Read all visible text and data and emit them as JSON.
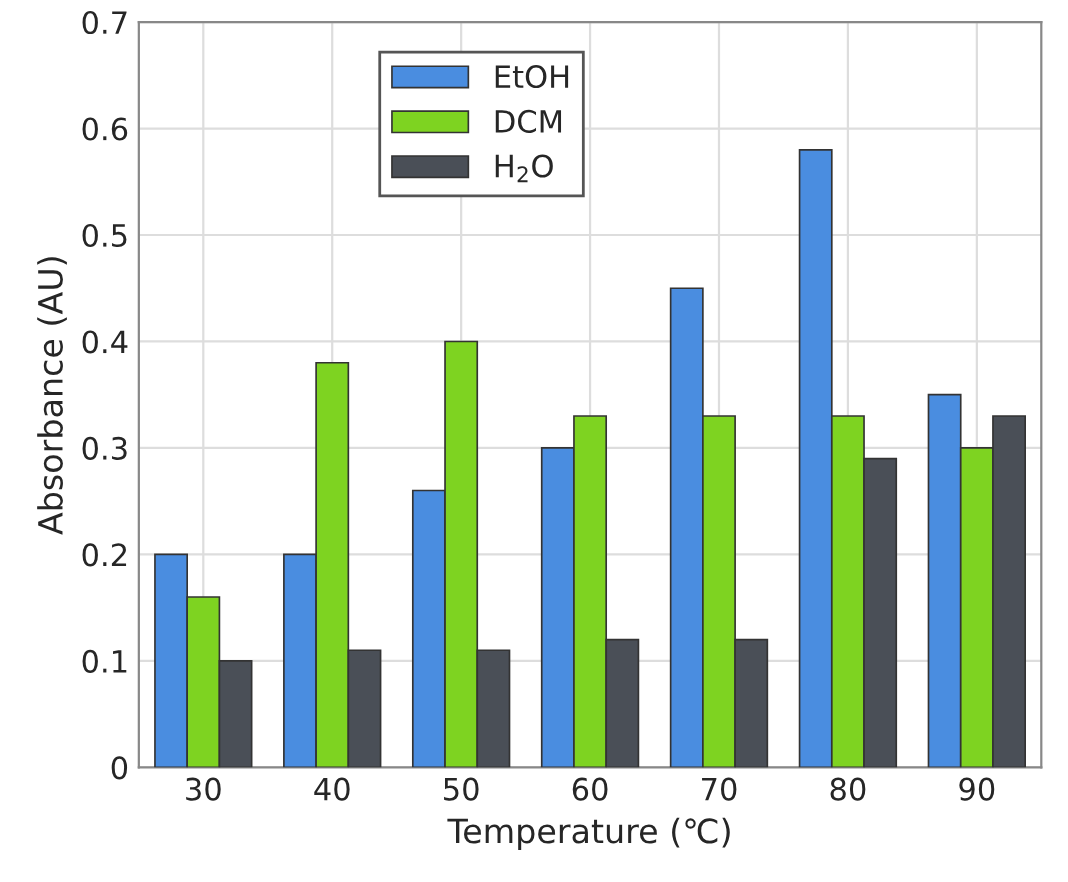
{
  "chart_data": {
    "type": "bar",
    "xlabel": "Temperature (℃)",
    "ylabel": "Absorbance (AU)",
    "categories": [
      "30",
      "40",
      "50",
      "60",
      "70",
      "80",
      "90"
    ],
    "series": [
      {
        "name": "EtOH",
        "color": "#4a8de0",
        "values": [
          0.2,
          0.2,
          0.26,
          0.3,
          0.45,
          0.58,
          0.35
        ]
      },
      {
        "name": "DCM",
        "color": "#7ed321",
        "values": [
          0.16,
          0.38,
          0.4,
          0.33,
          0.33,
          0.33,
          0.3
        ]
      },
      {
        "name": "H$_{2}$O",
        "color": "#4a4f57",
        "values": [
          0.1,
          0.11,
          0.11,
          0.12,
          0.12,
          0.29,
          0.33
        ]
      }
    ],
    "ylim": [
      0,
      0.7
    ],
    "yticks": [
      0,
      0.1,
      0.2,
      0.3,
      0.4,
      0.5,
      0.6,
      0.7
    ],
    "grid": true,
    "legend": "top left"
  }
}
